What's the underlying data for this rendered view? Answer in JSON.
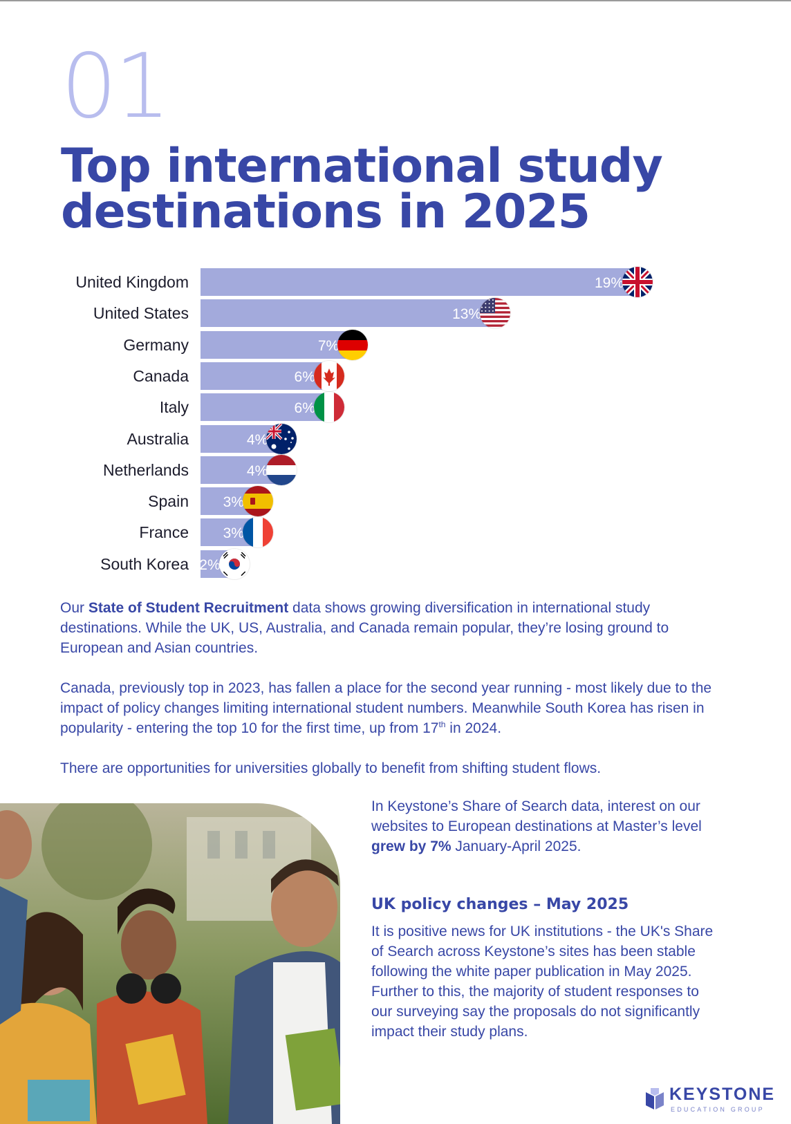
{
  "section": {
    "number": "01",
    "title": "Top international study destinations in 2025"
  },
  "chart_data": {
    "type": "bar",
    "orientation": "horizontal",
    "title": "Top international study destinations in 2025",
    "categories": [
      "United Kingdom",
      "United States",
      "Germany",
      "Canada",
      "Italy",
      "Australia",
      "Netherlands",
      "Spain",
      "France",
      "South Korea"
    ],
    "values": [
      19,
      13,
      7,
      6,
      6,
      4,
      4,
      3,
      3,
      2
    ],
    "value_labels": [
      "19%",
      "13%",
      "7%",
      "6%",
      "6%",
      "4%",
      "4%",
      "3%",
      "3%",
      "2%"
    ],
    "flags": [
      "uk-flag-icon",
      "us-flag-icon",
      "germany-flag-icon",
      "canada-flag-icon",
      "italy-flag-icon",
      "australia-flag-icon",
      "netherlands-flag-icon",
      "spain-flag-icon",
      "france-flag-icon",
      "south-korea-flag-icon"
    ],
    "unit": "%",
    "xlim": [
      0,
      20
    ],
    "bar_color": "#a3aadc"
  },
  "paragraphs": {
    "p1_bold": "State of Student Recruitment",
    "p1_pre": "Our ",
    "p1_post": " data shows growing diversification in international study destinations. While the UK, US, Australia, and Canada remain popular, they’re losing ground to European and Asian countries.",
    "p2_main": "Canada, previously top in 2023, has fallen a place for the second year running - most likely due to the impact of policy changes limiting international student numbers. Meanwhile South Korea has risen in popularity - entering the top 10 for the first time, up from 17",
    "p2_sup": "th",
    "p2_end": " in 2024.",
    "p3": "There are opportunities for universities globally to benefit from shifting student flows."
  },
  "sidebar": {
    "intro_pre": "In Keystone’s Share of Search data, interest on our websites to European destinations at Master’s level ",
    "intro_bold": "grew by 7%",
    "intro_post": " January-April 2025.",
    "subhead": "UK policy changes – May 2025",
    "policy_text": "It is positive news for UK institutions - the UK's Share of Search across Keystone’s sites has been stable following the white paper publication in May 2025. Further to this, the majority of student responses to our surveying say the proposals do not significantly impact their study plans."
  },
  "logo": {
    "name": "KEYSTONE",
    "tagline": "EDUCATION GROUP"
  },
  "colors": {
    "primary": "#3847a6",
    "accent_light": "#b8bdee",
    "bar": "#a3aadc"
  }
}
